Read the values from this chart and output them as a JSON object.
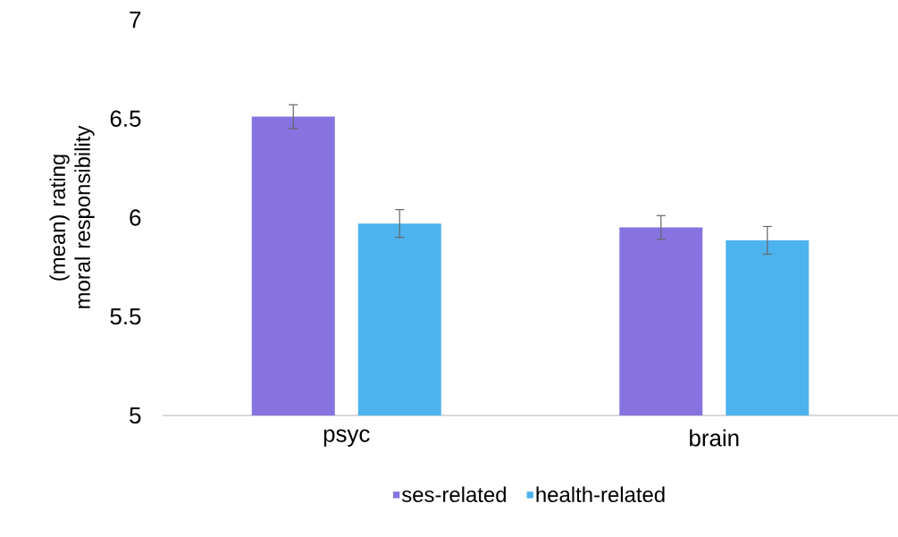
{
  "chart_data": {
    "type": "bar",
    "ylabel": "(mean) rating moral responsibility",
    "categories": [
      "psyc",
      "brain"
    ],
    "series": [
      {
        "name": "ses-related",
        "color": "#8673e0",
        "values": [
          6.51,
          5.95
        ],
        "errors": [
          0.06,
          0.06
        ]
      },
      {
        "name": "health-related",
        "color": "#4db3ee",
        "values": [
          5.97,
          5.885
        ],
        "errors": [
          0.07,
          0.07
        ]
      }
    ],
    "ylim": [
      5,
      7
    ],
    "yticks": [
      5,
      5.5,
      6,
      6.5,
      7
    ],
    "legend": "bottom"
  }
}
